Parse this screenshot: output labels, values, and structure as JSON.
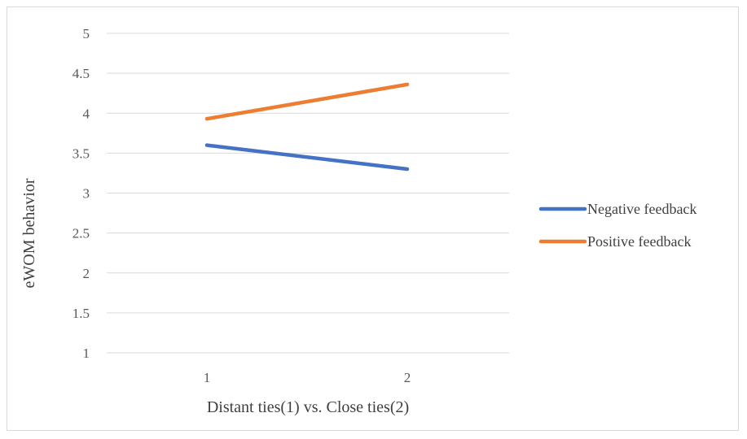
{
  "chart_data": {
    "type": "line",
    "title": "",
    "xlabel": "Distant ties(1) vs. Close ties(2)",
    "ylabel": "eWOM behavior",
    "categories": [
      "1",
      "2"
    ],
    "ylim": [
      1,
      5
    ],
    "yticks": [
      "1",
      "1.5",
      "2",
      "2.5",
      "3",
      "3.5",
      "4",
      "4.5",
      "5"
    ],
    "grid": true,
    "legend_position": "right",
    "series": [
      {
        "name": "Negative feedback",
        "values": [
          3.6,
          3.3
        ],
        "color": "#4472C4"
      },
      {
        "name": "Positive feedback",
        "values": [
          3.93,
          4.36
        ],
        "color": "#ED7D31"
      }
    ]
  }
}
